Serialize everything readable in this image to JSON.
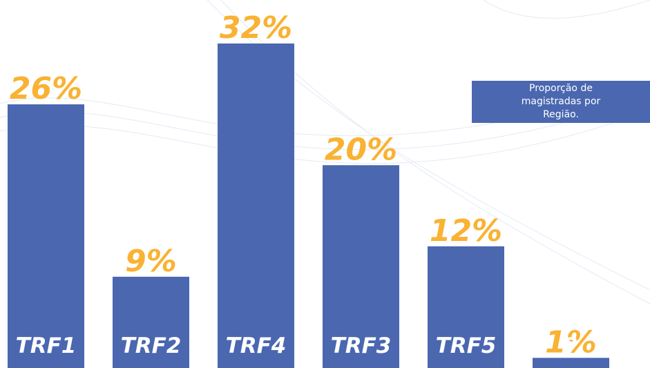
{
  "chart_data": {
    "type": "bar",
    "title": "Proporção de magistradas por Região.",
    "categories": [
      "TRF1",
      "TRF2",
      "TRF4",
      "TRF3",
      "TRF5",
      "?"
    ],
    "values": [
      26,
      9,
      32,
      20,
      12,
      1
    ],
    "value_labels": [
      "26%",
      "9%",
      "32%",
      "20%",
      "12%",
      "1%"
    ],
    "color": "#4a67b0",
    "label_color": "#f9b233"
  }
}
